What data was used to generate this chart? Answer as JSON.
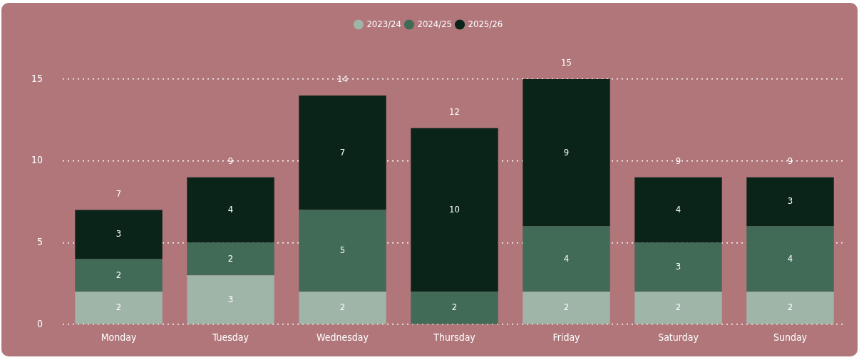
{
  "chart_data": {
    "type": "bar",
    "stacked": true,
    "categories": [
      "Monday",
      "Tuesday",
      "Wednesday",
      "Thursday",
      "Friday",
      "Saturday",
      "Sunday"
    ],
    "series": [
      {
        "name": "2023/24",
        "color": "#9fb5a8",
        "values": [
          2,
          3,
          2,
          null,
          2,
          2,
          2
        ]
      },
      {
        "name": "2024/25",
        "color": "#426b57",
        "values": [
          2,
          2,
          5,
          2,
          4,
          3,
          4
        ]
      },
      {
        "name": "2025/26",
        "color": "#0b2419",
        "values": [
          3,
          4,
          7,
          10,
          9,
          4,
          3
        ]
      }
    ],
    "totals": [
      "7",
      "9",
      "14",
      "12",
      "15",
      "9",
      "9"
    ],
    "data_labels": true,
    "ylim": [
      0,
      15
    ],
    "yticks": [
      0,
      5,
      10,
      15
    ],
    "grid": "y",
    "legend": "top"
  }
}
